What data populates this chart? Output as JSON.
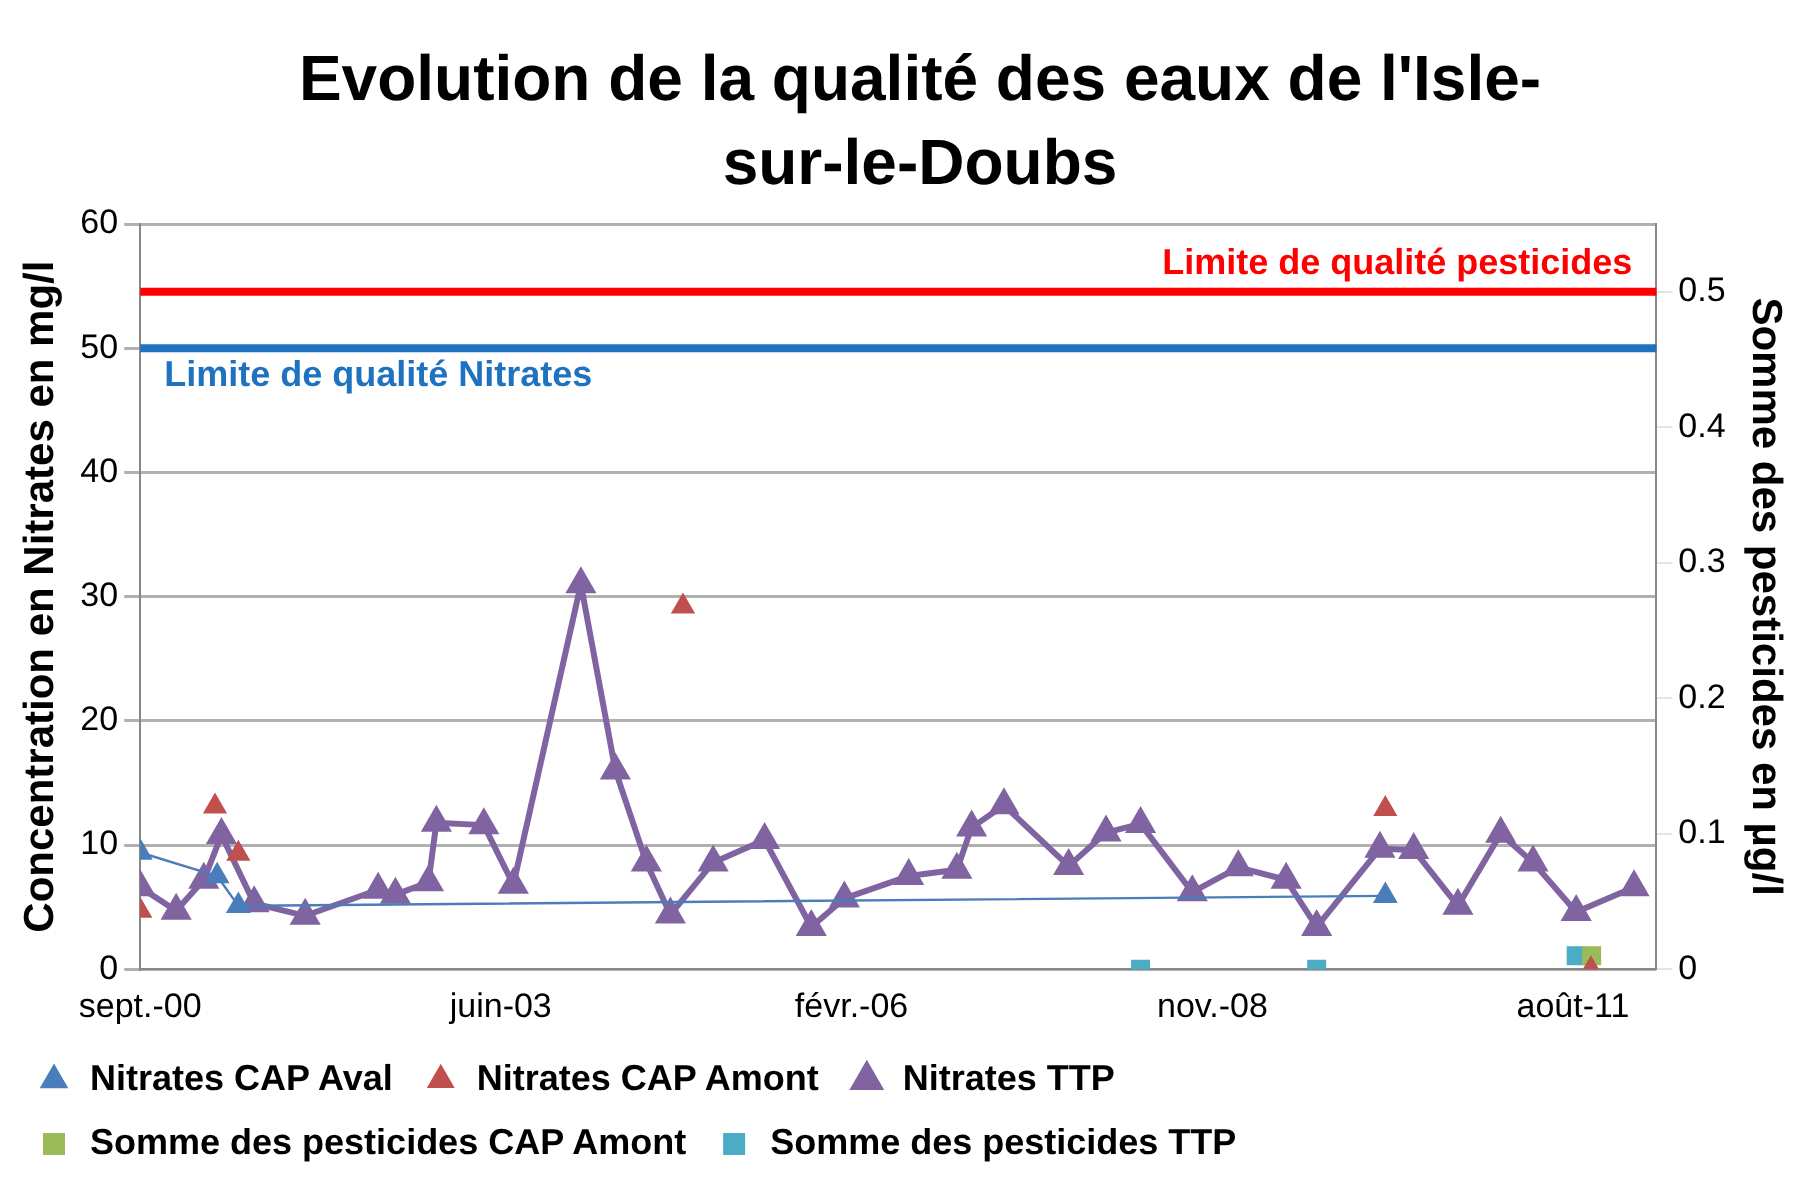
{
  "chart_data": {
    "type": "line",
    "title": "Evolution de la qualité des eaux de l'Isle-sur-le-Doubs",
    "ylabel": "Concentration en Nitrates en mg/l",
    "y2label": "Somme des pesticides en µg/l",
    "xlim": [
      "2000-09-01",
      "2012-03-20"
    ],
    "xticks": [
      {
        "value": "2000-09-01",
        "label": "sept.-00"
      },
      {
        "value": "2003-06-01",
        "label": "juin-03"
      },
      {
        "value": "2006-02-01",
        "label": "févr.-06"
      },
      {
        "value": "2008-11-01",
        "label": "nov.-08"
      },
      {
        "value": "2011-08-01",
        "label": "août-11"
      }
    ],
    "ylim": [
      0,
      60
    ],
    "yticks": [
      0,
      10,
      20,
      30,
      40,
      50,
      60
    ],
    "y2lim": [
      0,
      0.55
    ],
    "y2ticks": [
      0,
      0.1,
      0.2,
      0.3,
      0.4,
      0.5
    ],
    "grid": "y",
    "legend": "bottom",
    "marker": "triangle",
    "ref_lines": [
      {
        "axis": "y2",
        "value": 0.5,
        "label": "Limite de qualité pesticides",
        "color": "#ff0000"
      },
      {
        "axis": "y",
        "value": 50,
        "label": "Limite de qualité Nitrates",
        "color": "#1f72bf"
      }
    ],
    "series": [
      {
        "name": "Nitrates CAP Aval",
        "type": "line",
        "color": "#4a7ebb",
        "x": [
          "2000-09-01",
          "2001-04-03",
          "2001-06-01",
          "2010-02-25"
        ],
        "values": [
          9.4,
          7.5,
          5.1,
          5.9
        ]
      },
      {
        "name": "Nitrates CAP Amont",
        "type": "scatter",
        "color": "#c0504d",
        "x": [
          "2000-09-01",
          "2001-03-28",
          "2001-06-01",
          "2004-10-20",
          "2010-02-25",
          "2011-09-20"
        ],
        "values": [
          4.7,
          13.1,
          9.3,
          29.2,
          12.9,
          0
        ]
      },
      {
        "name": "Nitrates TTP",
        "type": "line",
        "color": "#8064a2",
        "x": [
          "2000-09-01",
          "2000-12-10",
          "2001-02-25",
          "2001-04-15",
          "2001-07-15",
          "2001-12-04",
          "2002-06-25",
          "2002-08-12",
          "2002-11-12",
          "2002-12-04",
          "2003-04-15",
          "2003-07-06",
          "2004-01-10",
          "2004-04-15",
          "2004-07-10",
          "2004-09-15",
          "2005-01-12",
          "2005-06-04",
          "2005-10-12",
          "2006-01-12",
          "2006-07-10",
          "2006-11-21",
          "2007-01-01",
          "2007-04-01",
          "2007-09-28",
          "2008-01-10",
          "2008-04-15",
          "2008-09-06",
          "2009-01-12",
          "2009-05-25",
          "2009-08-18",
          "2010-02-10",
          "2010-05-15",
          "2010-09-15",
          "2011-01-12",
          "2011-04-12",
          "2011-08-10",
          "2012-01-18"
        ],
        "values": [
          6.6,
          4.7,
          7.2,
          10.8,
          5.3,
          4.3,
          6.4,
          6.0,
          7.0,
          11.8,
          11.6,
          6.8,
          31.0,
          16.0,
          8.6,
          4.4,
          8.6,
          10.4,
          3.4,
          5.7,
          7.5,
          8.0,
          11.4,
          13.2,
          8.3,
          11.0,
          11.7,
          6.2,
          8.2,
          7.2,
          3.4,
          9.7,
          9.6,
          5.1,
          10.9,
          8.6,
          4.6,
          6.6
        ]
      },
      {
        "name": "Somme des pesticides CAP Amont",
        "type": "scatter",
        "axis": "y2",
        "marker": "square",
        "color": "#9bbb59",
        "x": [
          "2011-09-22"
        ],
        "values": [
          0.01
        ]
      },
      {
        "name": "Somme des pesticides TTP",
        "type": "scatter",
        "axis": "y2",
        "marker": "square",
        "color": "#4bacc6",
        "x": [
          "2008-04-15",
          "2009-08-18",
          "2011-08-10"
        ],
        "values": [
          0,
          0,
          0.01
        ]
      }
    ]
  }
}
